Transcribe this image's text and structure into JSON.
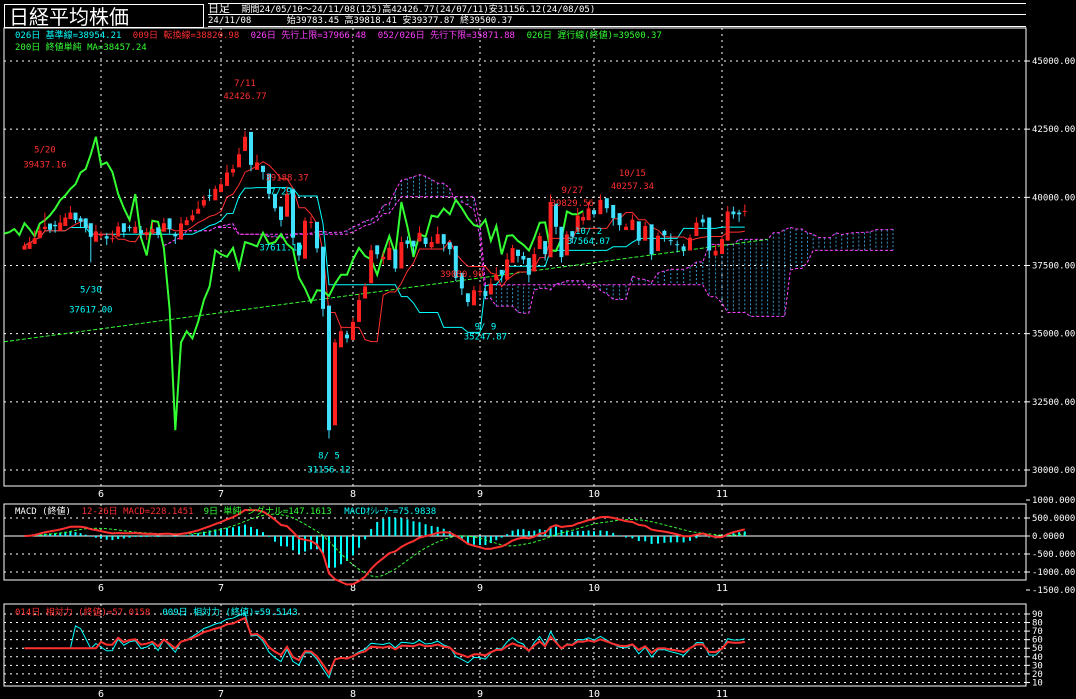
{
  "window": {
    "title": "日経平均株価",
    "timeframe": "日足",
    "period_info": "期間24/05/10～24/11/08(125)高42426.77(24/07/11)安31156.12(24/08/05)",
    "date": "24/11/08",
    "ohlc": "始39783.45 高39818.41 安39377.87 終39500.37"
  },
  "legends": {
    "main_line1": [
      {
        "text": "026日 基準線=38954.21",
        "color": "#00ffff"
      },
      {
        "text": "009日 転換線=38820.98",
        "color": "#ff3030"
      },
      {
        "text": "026日 先行上限=37966.48",
        "color": "#ff40ff"
      },
      {
        "text": "052/026日 先行下限=35871.88",
        "color": "#ff40ff"
      },
      {
        "text": "026日 遅行線(終値)=39500.37",
        "color": "#33ff33"
      }
    ],
    "main_line2": [
      {
        "text": "200日 終値単純 MA=38457.24",
        "color": "#33ff33"
      }
    ],
    "macd": [
      {
        "text": "MACD (終値)",
        "color": "#ffffff"
      },
      {
        "text": "12-26日 MACD=228.1451",
        "color": "#ff3030"
      },
      {
        "text": "9日 単純 シグナル=147.1613",
        "color": "#33ff33"
      },
      {
        "text": "MACDｵｼﾚｰﾀｰ=75.9838",
        "color": "#00ffff"
      }
    ],
    "rsi": [
      {
        "text": "014日 相対力 (終値)=57.0158",
        "color": "#ff3030"
      },
      {
        "text": "009日 相対力 (終値)=59.5143",
        "color": "#00ffff"
      }
    ]
  },
  "annotations": [
    {
      "text": "5/20",
      "color": "#ff3030",
      "date": "05/20"
    },
    {
      "text": "39437.16",
      "color": "#ff3030",
      "date": "05/20"
    },
    {
      "text": "5/30",
      "color": "#00ffff",
      "date": "05/30"
    },
    {
      "text": "37617.00",
      "color": "#00ffff",
      "date": "05/30"
    },
    {
      "text": "7/11",
      "color": "#ff3030",
      "date": "07/11"
    },
    {
      "text": "42426.77",
      "color": "#ff3030",
      "date": "07/11"
    },
    {
      "text": "39188.37",
      "color": "#ff3030",
      "date": "07/31"
    },
    {
      "text": "7/29",
      "color": "#00ffff",
      "date": "07/29"
    },
    {
      "text": "37611.19",
      "color": "#00ffff",
      "date": "07/29"
    },
    {
      "text": "8/ 5",
      "color": "#00ffff",
      "date": "08/05"
    },
    {
      "text": "31156.12",
      "color": "#00ffff",
      "date": "08/05"
    },
    {
      "text": "39080.90",
      "color": "#ff3030",
      "date": "09/02"
    },
    {
      "text": "9/ 9",
      "color": "#00ffff",
      "date": "09/09"
    },
    {
      "text": "35247.87",
      "color": "#00ffff",
      "date": "09/09"
    },
    {
      "text": "9/27",
      "color": "#ff3030",
      "date": "09/27"
    },
    {
      "text": "39829.56",
      "color": "#ff3030",
      "date": "09/27"
    },
    {
      "text": "10/ 2",
      "color": "#00ffff",
      "date": "10/02"
    },
    {
      "text": "37564.07",
      "color": "#00ffff",
      "date": "10/02"
    },
    {
      "text": "10/15",
      "color": "#ff3030",
      "date": "10/15"
    },
    {
      "text": "40257.34",
      "color": "#ff3030",
      "date": "10/15"
    }
  ],
  "chart_data": [
    {
      "type": "candlestick",
      "x_month_labels": [
        "6",
        "7",
        "8",
        "9",
        "10",
        "11"
      ],
      "ylim": [
        30000,
        46000
      ],
      "y_ticks": [
        "45000.00",
        "42500.00",
        "40000.00",
        "37500.00",
        "35000.00",
        "32500.00",
        "30000.00"
      ],
      "y_values": [
        45000,
        42500,
        40000,
        37500,
        35000,
        32500,
        30000
      ],
      "grid": true,
      "closes": [
        38230,
        38350,
        38500,
        38780,
        38920,
        38810,
        38940,
        39070,
        39260,
        39440,
        39170,
        39110,
        38870,
        38550,
        38750,
        38630,
        38490,
        38500,
        38930,
        38730,
        38870,
        38920,
        38670,
        38720,
        38840,
        38620,
        39050,
        38830,
        38570,
        39040,
        39160,
        39340,
        39580,
        39900,
        40070,
        40310,
        40480,
        40910,
        41040,
        41580,
        42220,
        41190,
        41280,
        40930,
        40130,
        39600,
        39170,
        40120,
        38520,
        37870,
        39140,
        39100,
        38130,
        35910,
        31460,
        34680,
        35090,
        34830,
        35430,
        36230,
        36730,
        38060,
        37910,
        37820,
        38150,
        37390,
        38360,
        38290,
        38200,
        38700,
        38290,
        38360,
        38650,
        38290,
        38100,
        37050,
        36660,
        36160,
        36590,
        36570,
        36380,
        36830,
        37160,
        37160,
        37720,
        38140,
        37850,
        37720,
        37160,
        37920,
        38580,
        37920,
        39830,
        38920,
        37810,
        38640,
        38560,
        39330,
        39280,
        39590,
        39380,
        39910,
        39600,
        39240,
        38980,
        38920,
        39180,
        38410,
        38950,
        37910,
        38590,
        38610,
        38400,
        38260,
        38050,
        38520,
        39070,
        39080,
        38050,
        38040,
        38470,
        39480,
        39380,
        39380,
        39500
      ],
      "series": [
        {
          "name": "026日 基準線",
          "color": "#00ffff"
        },
        {
          "name": "009日 転換線",
          "color": "#ff3030"
        },
        {
          "name": "026日 遅行線(終値)",
          "color": "#33ff33"
        },
        {
          "name": "200日 終値単純 MA",
          "color": "#33ff33"
        }
      ]
    },
    {
      "type": "line",
      "title": "MACD (終値)",
      "y_ticks": [
        "1000.0000",
        "500.0000",
        "0.0000",
        "-500.0000",
        "-1000.0000",
        "-1500.0000"
      ],
      "y_values": [
        1000,
        500,
        0,
        -500,
        -1000,
        -1500
      ],
      "ylim": [
        -1700,
        1200
      ],
      "series": [
        {
          "name": "12-26日 MACD",
          "color": "#ff3030"
        },
        {
          "name": "9日 単純 シグナル",
          "color": "#33ff33"
        },
        {
          "name": "MACDｵｼﾚｰﾀｰ",
          "color": "#00ffff"
        }
      ]
    },
    {
      "type": "line",
      "title": "相対力",
      "y_ticks": [
        "90",
        "80",
        "70",
        "60",
        "50",
        "40",
        "30",
        "20",
        "10"
      ],
      "y_values": [
        90,
        80,
        70,
        60,
        50,
        40,
        30,
        20,
        10
      ],
      "ylim": [
        5,
        95
      ],
      "series": [
        {
          "name": "014日 相対力 (終値)",
          "color": "#ff3030"
        },
        {
          "name": "009日 相対力 (終値)",
          "color": "#00ffff"
        }
      ]
    }
  ]
}
